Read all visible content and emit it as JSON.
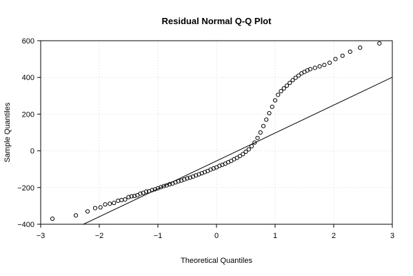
{
  "chart_data": {
    "type": "scatter",
    "title": "Residual Normal Q-Q Plot",
    "xlabel": "Theoretical Quantiles",
    "ylabel": "Sample Quantiles",
    "xlim": [
      -3,
      3
    ],
    "ylim": [
      -400,
      600
    ],
    "xticks": [
      -3,
      -2,
      -1,
      0,
      1,
      2,
      3
    ],
    "yticks": [
      -400,
      -200,
      0,
      200,
      400,
      600
    ],
    "grid": true,
    "reference_line": {
      "slope": 152,
      "intercept": -55
    },
    "points": [
      [
        -2.8,
        -370
      ],
      [
        -2.4,
        -352
      ],
      [
        -2.2,
        -330
      ],
      [
        -2.07,
        -312
      ],
      [
        -1.98,
        -308
      ],
      [
        -1.9,
        -292
      ],
      [
        -1.82,
        -288
      ],
      [
        -1.75,
        -284
      ],
      [
        -1.68,
        -272
      ],
      [
        -1.62,
        -268
      ],
      [
        -1.56,
        -265
      ],
      [
        -1.5,
        -252
      ],
      [
        -1.45,
        -248
      ],
      [
        -1.4,
        -246
      ],
      [
        -1.35,
        -242
      ],
      [
        -1.3,
        -233
      ],
      [
        -1.25,
        -229
      ],
      [
        -1.2,
        -222
      ],
      [
        -1.15,
        -220
      ],
      [
        -1.1,
        -214
      ],
      [
        -1.05,
        -210
      ],
      [
        -1.0,
        -204
      ],
      [
        -0.95,
        -198
      ],
      [
        -0.9,
        -192
      ],
      [
        -0.85,
        -188
      ],
      [
        -0.8,
        -182
      ],
      [
        -0.75,
        -178
      ],
      [
        -0.7,
        -172
      ],
      [
        -0.65,
        -166
      ],
      [
        -0.6,
        -162
      ],
      [
        -0.55,
        -156
      ],
      [
        -0.5,
        -150
      ],
      [
        -0.45,
        -146
      ],
      [
        -0.4,
        -140
      ],
      [
        -0.35,
        -134
      ],
      [
        -0.3,
        -128
      ],
      [
        -0.25,
        -122
      ],
      [
        -0.2,
        -116
      ],
      [
        -0.15,
        -110
      ],
      [
        -0.1,
        -102
      ],
      [
        -0.05,
        -96
      ],
      [
        0.0,
        -90
      ],
      [
        0.05,
        -82
      ],
      [
        0.1,
        -76
      ],
      [
        0.15,
        -70
      ],
      [
        0.2,
        -62
      ],
      [
        0.25,
        -55
      ],
      [
        0.3,
        -46
      ],
      [
        0.35,
        -38
      ],
      [
        0.4,
        -28
      ],
      [
        0.45,
        -18
      ],
      [
        0.5,
        -5
      ],
      [
        0.55,
        8
      ],
      [
        0.6,
        25
      ],
      [
        0.65,
        45
      ],
      [
        0.7,
        70
      ],
      [
        0.75,
        100
      ],
      [
        0.8,
        135
      ],
      [
        0.85,
        170
      ],
      [
        0.9,
        205
      ],
      [
        0.95,
        240
      ],
      [
        1.0,
        275
      ],
      [
        1.05,
        305
      ],
      [
        1.1,
        325
      ],
      [
        1.15,
        340
      ],
      [
        1.2,
        355
      ],
      [
        1.25,
        370
      ],
      [
        1.3,
        385
      ],
      [
        1.35,
        398
      ],
      [
        1.4,
        410
      ],
      [
        1.45,
        422
      ],
      [
        1.5,
        430
      ],
      [
        1.55,
        438
      ],
      [
        1.6,
        445
      ],
      [
        1.68,
        452
      ],
      [
        1.76,
        460
      ],
      [
        1.84,
        468
      ],
      [
        1.93,
        480
      ],
      [
        2.03,
        500
      ],
      [
        2.15,
        518
      ],
      [
        2.28,
        540
      ],
      [
        2.45,
        562
      ],
      [
        2.78,
        585
      ]
    ]
  }
}
